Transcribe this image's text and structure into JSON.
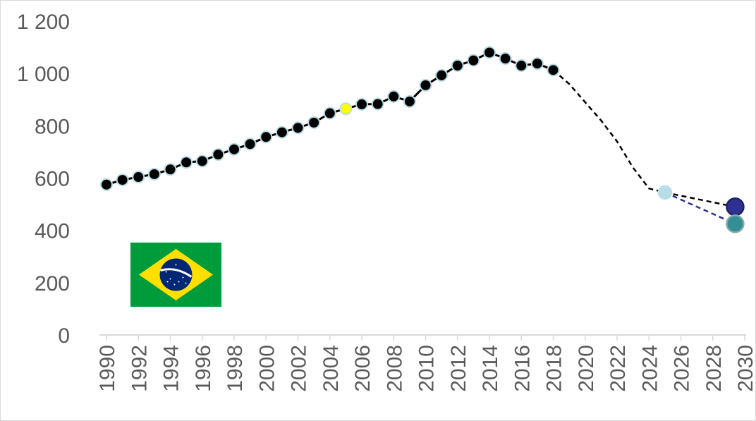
{
  "chart_data": {
    "type": "line",
    "title": "",
    "xlabel": "",
    "ylabel": "",
    "xlim": [
      1990,
      2030
    ],
    "ylim": [
      0,
      1200
    ],
    "y_ticks": [
      0,
      200,
      400,
      600,
      800,
      1000,
      1200
    ],
    "y_tick_labels": [
      "0",
      "200",
      "400",
      "600",
      "800",
      "1 000",
      "1 200"
    ],
    "x_ticks": [
      1990,
      1992,
      1994,
      1996,
      1998,
      2000,
      2002,
      2004,
      2006,
      2008,
      2010,
      2012,
      2014,
      2016,
      2018,
      2020,
      2022,
      2024,
      2026,
      2028,
      2030
    ],
    "x_tick_labels": [
      "1990",
      "1992",
      "1994",
      "1996",
      "1998",
      "2000",
      "2002",
      "2004",
      "2006",
      "2008",
      "2010",
      "2012",
      "2014",
      "2016",
      "2018",
      "2020",
      "2022",
      "2024",
      "2026",
      "2028",
      "2030"
    ],
    "grid": false,
    "legend": "none",
    "series": [
      {
        "color": "#000000",
        "marker_edge": "#b7dde8",
        "style": "solid",
        "points": [
          [
            1990,
            575
          ],
          [
            1991,
            593
          ],
          [
            1992,
            604
          ],
          [
            1993,
            615
          ],
          [
            1994,
            633
          ],
          [
            1995,
            660
          ],
          [
            1996,
            665
          ],
          [
            1997,
            690
          ],
          [
            1998,
            710
          ],
          [
            1999,
            730
          ],
          [
            2000,
            757
          ],
          [
            2001,
            775
          ],
          [
            2002,
            792
          ],
          [
            2003,
            812
          ],
          [
            2004,
            848
          ],
          [
            2005,
            865
          ],
          [
            2006,
            882
          ],
          [
            2007,
            883
          ],
          [
            2008,
            912
          ],
          [
            2009,
            893
          ],
          [
            2010,
            955
          ],
          [
            2011,
            993
          ],
          [
            2012,
            1030
          ],
          [
            2013,
            1050
          ],
          [
            2014,
            1080
          ],
          [
            2015,
            1057
          ],
          [
            2016,
            1030
          ],
          [
            2017,
            1038
          ],
          [
            2018,
            1013
          ]
        ],
        "highlight_point": {
          "x": 2005,
          "y": 865,
          "color": "#ffff00"
        }
      },
      {
        "color": "#000000",
        "style": "dashed",
        "points": [
          [
            2018,
            1013
          ],
          [
            2019,
            960
          ],
          [
            2020,
            890
          ],
          [
            2021,
            820
          ],
          [
            2022,
            740
          ],
          [
            2023,
            640
          ],
          [
            2024,
            560
          ],
          [
            2025,
            545
          ]
        ]
      },
      {
        "color": "#000000",
        "style": "dashed",
        "points": [
          [
            2025,
            545
          ],
          [
            2029.4,
            490
          ]
        ]
      },
      {
        "color": "#2e3192",
        "style": "dashed",
        "points": [
          [
            2025,
            545
          ],
          [
            2029.4,
            425
          ]
        ]
      }
    ],
    "special_markers": [
      {
        "x": 2025,
        "y": 545,
        "color": "#b7dde8",
        "edge": "#b7dde8",
        "size": "medium"
      },
      {
        "x": 2029.4,
        "y": 490,
        "color": "#2e3192",
        "edge": "#1f2166",
        "size": "large"
      },
      {
        "x": 2029.4,
        "y": 425,
        "color": "#318f95",
        "edge": "#8aa9ad",
        "size": "large"
      }
    ],
    "annotations": [
      {
        "type": "flag",
        "name": "brazil-flag",
        "colors": {
          "green": "#009c3b",
          "yellow": "#ffdf00",
          "blue": "#002776",
          "white": "#ffffff"
        }
      }
    ]
  }
}
